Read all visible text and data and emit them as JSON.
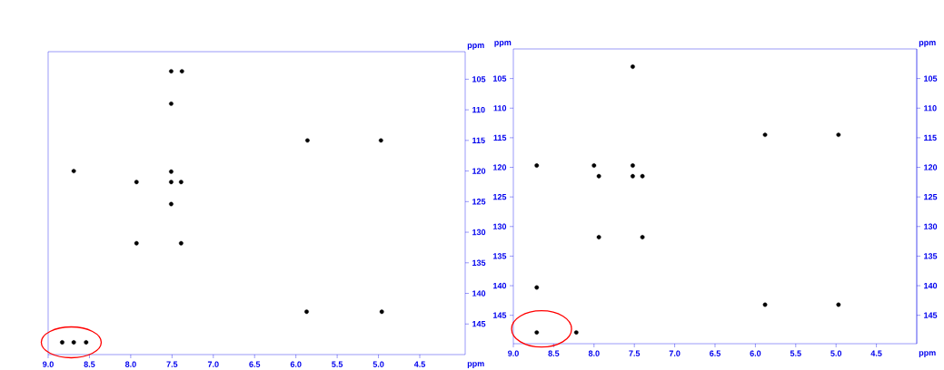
{
  "chart_data": [
    {
      "type": "scatter",
      "xlabel": "ppm",
      "y2label": "ppm",
      "marker": "circle",
      "xlim": [
        9.0,
        3.95
      ],
      "xticks": [
        {
          "value": 9,
          "label": "9.0"
        },
        8.5,
        {
          "value": 8,
          "label": "8.0"
        },
        7.5,
        {
          "value": 7,
          "label": "7.0"
        },
        6.5,
        {
          "value": 6,
          "label": "6.0"
        },
        5.5,
        {
          "value": 5,
          "label": "5.0"
        },
        4.5
      ],
      "y2lim": [
        150,
        100.5
      ],
      "y2ticks": [
        105,
        110,
        115,
        120,
        125,
        130,
        135,
        140,
        145
      ],
      "series": [
        {
          "color": "#000000",
          "axis": "y2",
          "x": [
            7.51,
            7.38,
            7.51,
            5.86,
            4.97,
            8.69,
            7.93,
            7.51,
            7.51,
            7.39,
            7.51,
            7.93,
            7.39,
            5.87,
            4.96,
            8.83,
            8.69,
            8.54
          ],
          "values": [
            103.7,
            103.7,
            109,
            115,
            115,
            120,
            121.8,
            120.1,
            121.8,
            121.8,
            125.4,
            131.8,
            131.8,
            143,
            143,
            148,
            148,
            148
          ]
        }
      ]
    },
    {
      "type": "scatter",
      "xlabel": "ppm",
      "ylabel": "ppm",
      "y2label": "ppm",
      "marker": "circle",
      "xlim": [
        9.0,
        4.0
      ],
      "xticks": [
        {
          "value": 9,
          "label": "9.0"
        },
        8.5,
        {
          "value": 8,
          "label": "8.0"
        },
        7.5,
        {
          "value": 7,
          "label": "7.0"
        },
        6.5,
        {
          "value": 6,
          "label": "6.0"
        },
        5.5,
        {
          "value": 5,
          "label": "5.0"
        },
        4.5
      ],
      "ylim": [
        149.8,
        100
      ],
      "yticks": [
        105,
        110,
        115,
        120,
        125,
        130,
        135,
        140,
        145
      ],
      "y2lim": [
        149.8,
        100
      ],
      "y2ticks": [
        105,
        110,
        115,
        120,
        125,
        130,
        135,
        140,
        145
      ],
      "series": [
        {
          "color": "#000000",
          "x": [
            7.52,
            5.88,
            4.97,
            8.71,
            8.0,
            7.52,
            7.94,
            7.52,
            7.4,
            7.94,
            7.4,
            8.71,
            5.88,
            4.97,
            8.71,
            8.22
          ],
          "values": [
            103,
            114.5,
            114.5,
            119.7,
            119.7,
            119.7,
            121.5,
            121.5,
            121.5,
            131.8,
            131.8,
            140.3,
            143.2,
            143.2,
            147.9,
            147.9
          ]
        }
      ]
    }
  ]
}
